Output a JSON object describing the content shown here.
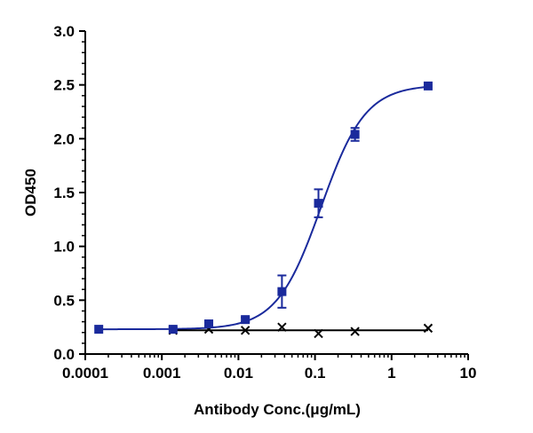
{
  "chart_data": {
    "type": "scatter",
    "xlabel": "Antibody Conc.(μg/mL)",
    "ylabel": "OD450",
    "x_scale": "log",
    "xlim": [
      0.0001,
      10
    ],
    "ylim": [
      0,
      3.0
    ],
    "x_ticks": [
      0.0001,
      0.001,
      0.01,
      0.1,
      1,
      10
    ],
    "x_tick_labels": [
      "0.0001",
      "0.001",
      "0.01",
      "0.1",
      "1",
      "10"
    ],
    "y_ticks": [
      0,
      0.5,
      1.0,
      1.5,
      2.0,
      2.5,
      3.0
    ],
    "y_tick_labels": [
      "0.0",
      "0.5",
      "1.0",
      "1.5",
      "2.0",
      "2.5",
      "3.0"
    ],
    "grid": false,
    "legend": "none",
    "series": [
      {
        "color": "#1a2a9c",
        "marker": "square",
        "x": [
          0.00015,
          0.0014,
          0.0041,
          0.0123,
          0.037,
          0.111,
          0.333,
          3.0
        ],
        "y": [
          0.23,
          0.23,
          0.28,
          0.32,
          0.58,
          1.4,
          2.04,
          2.49
        ],
        "err": [
          0.0,
          0.0,
          0.02,
          0.02,
          0.15,
          0.13,
          0.06,
          0.0
        ],
        "fit": {
          "bottom": 0.23,
          "top": 2.5,
          "ec50": 0.12,
          "hill": 1.5
        }
      },
      {
        "color": "#000000",
        "marker": "x",
        "x": [
          0.0014,
          0.0041,
          0.0123,
          0.037,
          0.111,
          0.333,
          3.0
        ],
        "y": [
          0.22,
          0.23,
          0.22,
          0.25,
          0.19,
          0.21,
          0.24
        ],
        "err": [
          0.0,
          0.0,
          0.0,
          0.0,
          0.0,
          0.0,
          0.0
        ],
        "fit_level": 0.22
      }
    ]
  }
}
